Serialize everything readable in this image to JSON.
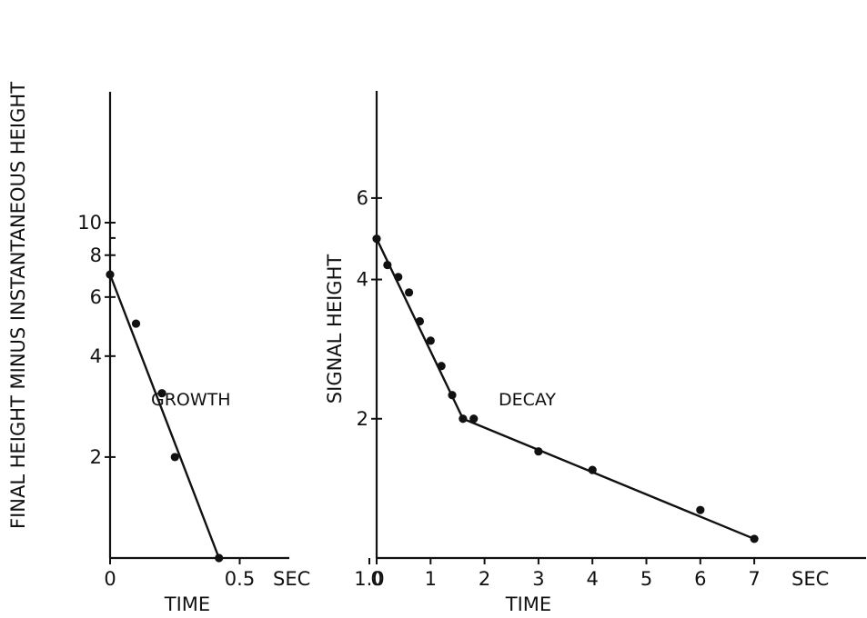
{
  "chart_data": [
    {
      "type": "scatter",
      "title": "",
      "annotation": "GROWTH",
      "xlabel": "TIME",
      "ylabel": "FINAL HEIGHT MINUS INSTANTANEOUS HEIGHT",
      "x_unit": "SEC",
      "y_scale": "log",
      "xlim": [
        0,
        1.2
      ],
      "ylim": [
        1,
        10
      ],
      "x_ticks": [
        "0",
        "0.5",
        "1.0"
      ],
      "y_ticks": [
        "2",
        "4",
        "6",
        "8",
        "10"
      ],
      "points": [
        {
          "x": 0.0,
          "y": 7.0
        },
        {
          "x": 0.1,
          "y": 5.0
        },
        {
          "x": 0.2,
          "y": 3.1
        },
        {
          "x": 0.25,
          "y": 2.0
        },
        {
          "x": 0.42,
          "y": 1.0
        }
      ],
      "fit_lines": [
        {
          "x": [
            0.0,
            0.42
          ],
          "y": [
            7.0,
            1.0
          ]
        }
      ]
    },
    {
      "type": "scatter",
      "title": "",
      "annotation": "DECAY",
      "xlabel": "TIME",
      "ylabel": "SIGNAL HEIGHT",
      "x_unit": "SEC",
      "y_scale": "log",
      "xlim": [
        0,
        8.5
      ],
      "ylim": [
        1,
        8
      ],
      "x_ticks": [
        "0",
        "1",
        "2",
        "3",
        "4",
        "5",
        "6",
        "7"
      ],
      "y_ticks": [
        "2",
        "4",
        "6"
      ],
      "points": [
        {
          "x": 0.0,
          "y": 4.9
        },
        {
          "x": 0.2,
          "y": 4.3
        },
        {
          "x": 0.4,
          "y": 4.05
        },
        {
          "x": 0.6,
          "y": 3.75
        },
        {
          "x": 0.8,
          "y": 3.25
        },
        {
          "x": 1.0,
          "y": 2.95
        },
        {
          "x": 1.2,
          "y": 2.6
        },
        {
          "x": 1.4,
          "y": 2.25
        },
        {
          "x": 1.6,
          "y": 2.0
        },
        {
          "x": 1.8,
          "y": 2.0
        },
        {
          "x": 3.0,
          "y": 1.7
        },
        {
          "x": 4.0,
          "y": 1.55
        },
        {
          "x": 6.0,
          "y": 1.27
        },
        {
          "x": 7.0,
          "y": 1.1
        }
      ],
      "fit_lines": [
        {
          "x": [
            0.0,
            1.6
          ],
          "y": [
            4.9,
            2.0
          ]
        },
        {
          "x": [
            1.6,
            7.0
          ],
          "y": [
            2.0,
            1.1
          ]
        }
      ]
    }
  ]
}
